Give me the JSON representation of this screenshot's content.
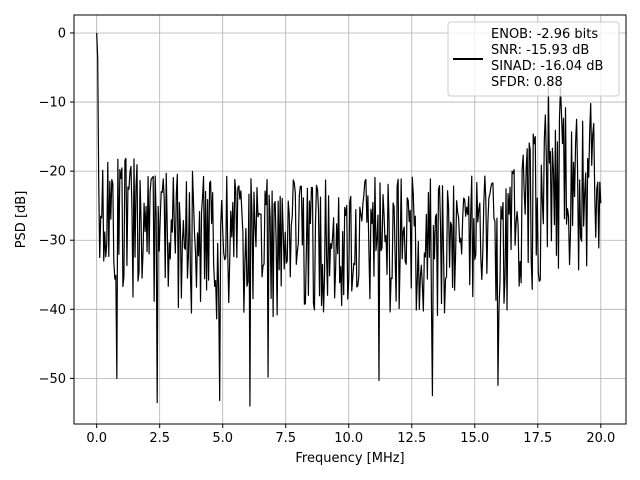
{
  "chart_data": {
    "type": "line",
    "title": "",
    "xlabel": "Frequency [MHz]",
    "ylabel": "PSD [dB]",
    "xlim": [
      -0.9,
      21.0
    ],
    "ylim": [
      -56.6,
      2.6
    ],
    "x_ticks": [
      0.0,
      2.5,
      5.0,
      7.5,
      10.0,
      12.5,
      15.0,
      17.5,
      20.0
    ],
    "x_tick_labels": [
      "0.0",
      "2.5",
      "5.0",
      "7.5",
      "10.0",
      "12.5",
      "15.0",
      "17.5",
      "20.0"
    ],
    "y_ticks": [
      0,
      -10,
      -20,
      -30,
      -40,
      -50
    ],
    "y_tick_labels": [
      "0",
      "−10",
      "−20",
      "−30",
      "−40",
      "−50"
    ],
    "grid": true,
    "legend_position": "top-right",
    "legend": [
      "ENOB: -2.96 bits",
      "SNR: -15.93 dB",
      "SINAD: -16.04 dB",
      "SFDR: 0.88"
    ],
    "series": [
      {
        "color": "#000000",
        "sample_spacing": 0.04,
        "x": [
          0.0,
          0.04,
          0.08,
          0.16,
          0.4,
          0.8,
          1.2,
          2.0,
          2.4,
          3.2,
          4.0,
          4.8,
          5.6,
          6.1,
          7.2,
          8.0,
          8.8,
          9.6,
          10.4,
          11.2,
          12.0,
          12.8,
          13.6,
          14.4,
          15.2,
          15.9,
          16.4,
          17.0,
          17.5,
          18.0,
          18.4,
          18.8,
          19.2,
          19.6,
          20.0
        ],
        "y": [
          0.0,
          -8.0,
          -18.0,
          -22.0,
          -24.0,
          -26.0,
          -25.0,
          -26.5,
          -27.0,
          -27.5,
          -27.0,
          -28.0,
          -27.5,
          -28.0,
          -28.0,
          -28.5,
          -28.0,
          -28.0,
          -28.5,
          -28.0,
          -28.0,
          -28.0,
          -28.5,
          -28.0,
          -27.5,
          -28.0,
          -27.5,
          -25.0,
          -22.0,
          -20.0,
          -20.0,
          -20.5,
          -21.0,
          -21.0,
          -22.0
        ],
        "spread_upper": [
          0,
          8,
          8,
          9,
          9,
          9,
          9,
          8,
          8,
          8,
          8,
          8,
          8,
          8,
          8,
          8,
          8,
          8,
          8,
          8,
          8,
          8,
          8,
          8,
          8,
          8,
          8,
          9,
          10,
          11,
          11,
          11,
          10,
          10,
          9
        ],
        "spread_lower": [
          0,
          10,
          14,
          14,
          15,
          15,
          15,
          15,
          15,
          15,
          15,
          15,
          15,
          15,
          15,
          14,
          14,
          14,
          14,
          14,
          14,
          14,
          14,
          14,
          14,
          15,
          15,
          16,
          17,
          17,
          17,
          17,
          16,
          16,
          15
        ],
        "notable_points": [
          {
            "x": 0.0,
            "y": 0.0
          },
          {
            "x": 0.8,
            "y": -50.0
          },
          {
            "x": 2.4,
            "y": -53.5
          },
          {
            "x": 4.9,
            "y": -53.2
          },
          {
            "x": 6.1,
            "y": -54.0
          },
          {
            "x": 6.8,
            "y": -49.8
          },
          {
            "x": 11.2,
            "y": -50.3
          },
          {
            "x": 13.3,
            "y": -52.5
          },
          {
            "x": 15.9,
            "y": -51.0
          },
          {
            "x": 17.9,
            "y": -7.8
          },
          {
            "x": 18.4,
            "y": -7.9
          },
          {
            "x": 19.6,
            "y": -10.2
          }
        ]
      }
    ]
  }
}
